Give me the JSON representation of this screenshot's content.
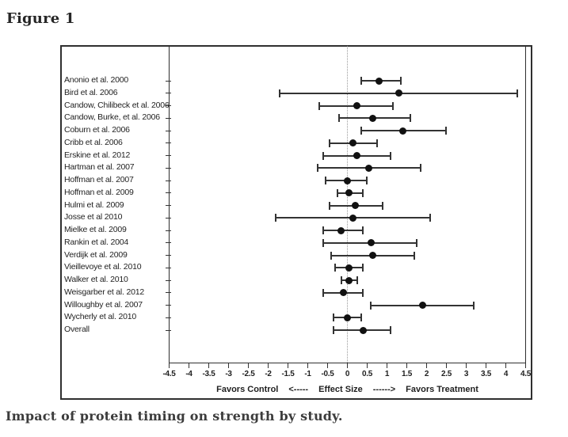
{
  "figure": {
    "label": "Figure 1",
    "caption": "Impact of protein timing on strength by study."
  },
  "chart_data": {
    "type": "forest",
    "marker": "filled-circle",
    "error_bars": true,
    "grid": false,
    "x_axis": {
      "min": -4.5,
      "max": 4.5,
      "step": 0.5,
      "zero_line": 0,
      "tick_labels": [
        "-4.5",
        "-4",
        "-3.5",
        "-3",
        "-2.5",
        "-2",
        "-1.5",
        "-1",
        "-0.5",
        "0",
        "0.5",
        "1",
        "1.5",
        "2",
        "2.5",
        "3",
        "3.5",
        "4",
        "4.5"
      ],
      "label_left": "Favors Control",
      "arrow_left": "<-----",
      "label_center": "Effect Size",
      "arrow_right": "------>",
      "label_right": "Favors Treatment"
    },
    "studies": [
      {
        "label": "Anonio et al. 2000",
        "effect": 0.8,
        "ci_low": 0.35,
        "ci_high": 1.35
      },
      {
        "label": "Bird et al. 2006",
        "effect": 1.3,
        "ci_low": -1.7,
        "ci_high": 4.3
      },
      {
        "label": "Candow, Chilibeck et al. 2006",
        "effect": 0.25,
        "ci_low": -0.7,
        "ci_high": 1.15
      },
      {
        "label": "Candow, Burke, et al. 2006",
        "effect": 0.65,
        "ci_low": -0.2,
        "ci_high": 1.6
      },
      {
        "label": "Coburn et al. 2006",
        "effect": 1.4,
        "ci_low": 0.35,
        "ci_high": 2.5
      },
      {
        "label": "Cribb et al. 2006",
        "effect": 0.15,
        "ci_low": -0.45,
        "ci_high": 0.75
      },
      {
        "label": "Erskine et al. 2012",
        "effect": 0.25,
        "ci_low": -0.6,
        "ci_high": 1.1
      },
      {
        "label": "Hartman et al. 2007",
        "effect": 0.55,
        "ci_low": -0.75,
        "ci_high": 1.85
      },
      {
        "label": "Hoffman et al. 2007",
        "effect": 0.0,
        "ci_low": -0.55,
        "ci_high": 0.5
      },
      {
        "label": "Hoffman et al. 2009",
        "effect": 0.05,
        "ci_low": -0.25,
        "ci_high": 0.4
      },
      {
        "label": "Hulmi et al. 2009",
        "effect": 0.2,
        "ci_low": -0.45,
        "ci_high": 0.9
      },
      {
        "label": "Josse et al 2010",
        "effect": 0.15,
        "ci_low": -1.8,
        "ci_high": 2.1
      },
      {
        "label": "Mielke et al. 2009",
        "effect": -0.15,
        "ci_low": -0.6,
        "ci_high": 0.4
      },
      {
        "label": "Rankin et al. 2004",
        "effect": 0.6,
        "ci_low": -0.6,
        "ci_high": 1.75
      },
      {
        "label": "Verdijk et al. 2009",
        "effect": 0.65,
        "ci_low": -0.4,
        "ci_high": 1.7
      },
      {
        "label": "Vieillevoye et al. 2010",
        "effect": 0.05,
        "ci_low": -0.3,
        "ci_high": 0.4
      },
      {
        "label": "Walker et al. 2010",
        "effect": 0.05,
        "ci_low": -0.15,
        "ci_high": 0.25
      },
      {
        "label": "Weisgarber et al. 2012",
        "effect": -0.1,
        "ci_low": -0.6,
        "ci_high": 0.4
      },
      {
        "label": "Willoughby et al. 2007",
        "effect": 1.9,
        "ci_low": 0.6,
        "ci_high": 3.2
      },
      {
        "label": "Wycherly et al. 2010",
        "effect": 0.0,
        "ci_low": -0.35,
        "ci_high": 0.35
      },
      {
        "label": "Overall",
        "effect": 0.4,
        "ci_low": -0.35,
        "ci_high": 1.1
      }
    ]
  },
  "colors": {
    "line": "#333333",
    "marker": "#111111",
    "zero_line": "#9a9a9a",
    "text": "#1f1f1f",
    "heading": "#262626",
    "caption": "#3c3c3c",
    "border": "#2f2f2f",
    "background": "#ffffff"
  }
}
